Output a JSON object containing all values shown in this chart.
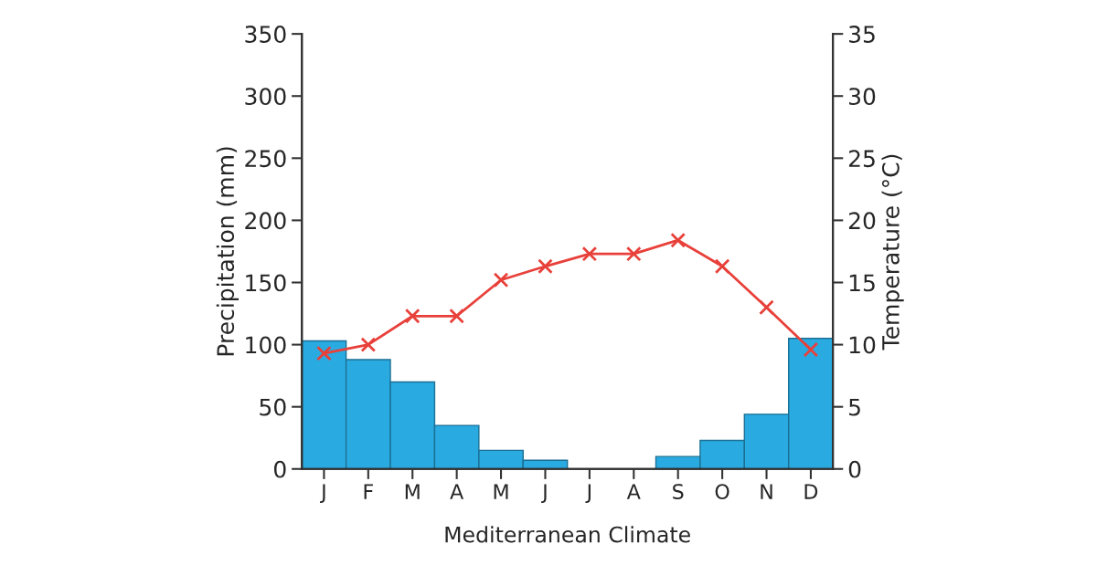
{
  "chart_data": {
    "type": "bar",
    "xlabel": "Mediterranean Climate",
    "ylabel": "Precipitation (mm)",
    "y2label": "Temperature (°C)",
    "categories": [
      "J",
      "F",
      "M",
      "A",
      "M",
      "J",
      "J",
      "A",
      "S",
      "O",
      "N",
      "D"
    ],
    "series": [
      {
        "color": "#29abe2",
        "values": [
          103,
          88,
          70,
          35,
          15,
          7,
          0,
          0,
          10,
          23,
          44,
          105
        ]
      },
      {
        "type": "line",
        "axis": "y2",
        "color": "#e8403a",
        "marker": "cross",
        "line_style": "solid",
        "values": [
          9.3,
          10,
          12.3,
          12.3,
          15.2,
          16.3,
          17.3,
          17.3,
          18.4,
          16.3,
          13,
          9.6
        ]
      }
    ],
    "ylim": [
      0,
      350
    ],
    "yticks": [
      0,
      50,
      100,
      150,
      200,
      250,
      300,
      350
    ],
    "y2lim": [
      0,
      35
    ],
    "y2ticks": [
      0,
      5,
      10,
      15,
      20,
      25,
      30,
      35
    ],
    "grid": false,
    "legend": false
  }
}
